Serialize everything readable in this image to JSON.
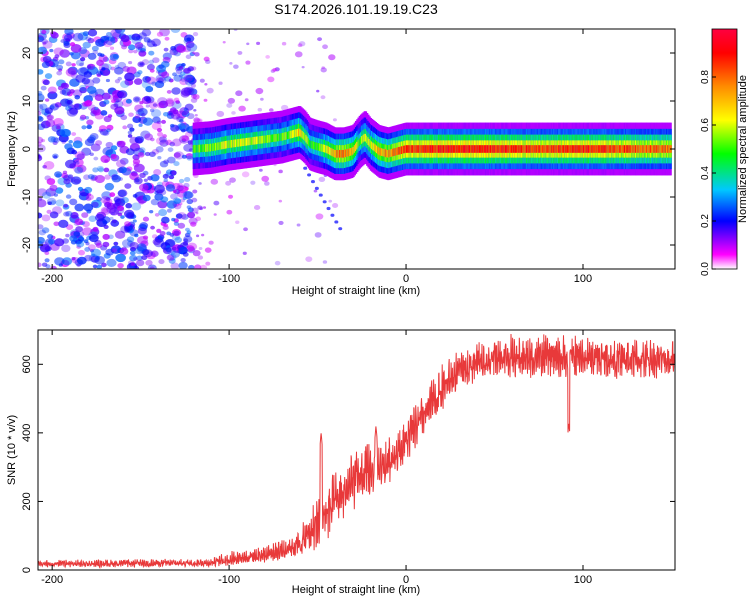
{
  "title": "S174.2026.101.19.19.C23",
  "chart_data": [
    {
      "type": "heatmap",
      "name": "spectrogram",
      "xlabel": "Height of straight line (km)",
      "ylabel": "Frequency (Hz)",
      "xlim": [
        -208,
        152
      ],
      "ylim": [
        -25,
        25
      ],
      "xticks": [
        -200,
        -100,
        0,
        100
      ],
      "xtick_labels": [
        "-200",
        "-100",
        "0",
        "100"
      ],
      "yticks": [
        -20,
        -10,
        0,
        10,
        20
      ],
      "ytick_labels": [
        "-20",
        "-10",
        "0",
        "10",
        "20"
      ],
      "colorbar": {
        "label": "Normalized spectral amplitude",
        "range": [
          0,
          1
        ],
        "ticks": [
          0.0,
          0.2,
          0.4,
          0.6,
          0.8
        ],
        "tick_labels": [
          "0.0",
          "0.2",
          "0.4",
          "0.6",
          "0.8"
        ],
        "colors": [
          "#ffffff",
          "#ff00ff",
          "#0000ff",
          "#00c8ff",
          "#00ff00",
          "#ffff00",
          "#ff8c00",
          "#ff0000"
        ]
      },
      "trace": {
        "x": [
          -120,
          -110,
          -100,
          -90,
          -80,
          -70,
          -65,
          -60,
          -57,
          -54,
          -50,
          -45,
          -40,
          -35,
          -30,
          -26,
          -23,
          -20,
          -15,
          -10,
          -5,
          0,
          20,
          40,
          60,
          80,
          100,
          120,
          150
        ],
        "y": [
          0,
          0.3,
          1,
          1.5,
          2,
          2.5,
          3,
          3.5,
          2.5,
          1,
          0.5,
          0,
          -1,
          -1,
          -0.5,
          1.5,
          2.5,
          1,
          -0.5,
          -1,
          -0.5,
          0,
          0,
          0,
          0,
          0,
          0,
          0,
          0
        ],
        "amplitude": [
          0.5,
          0.55,
          0.6,
          0.6,
          0.55,
          0.5,
          0.55,
          0.7,
          0.6,
          0.5,
          0.55,
          0.6,
          0.75,
          0.8,
          0.7,
          0.55,
          0.65,
          0.6,
          0.7,
          0.75,
          0.8,
          0.85,
          0.9,
          0.9,
          0.88,
          0.85,
          0.9,
          0.85,
          0.8
        ]
      },
      "noise_region": [
        -208,
        -120
      ]
    },
    {
      "type": "line",
      "name": "snr",
      "xlabel": "Height of straight line (km)",
      "ylabel": "SNR (10 * v/v)",
      "xlim": [
        -208,
        152
      ],
      "ylim": [
        0,
        700
      ],
      "xticks": [
        -200,
        -100,
        0,
        100
      ],
      "xtick_labels": [
        "-200",
        "-100",
        "0",
        "100"
      ],
      "yticks": [
        0,
        200,
        400,
        600
      ],
      "ytick_labels": [
        "0",
        "200",
        "400",
        "600"
      ],
      "color": "#e8393a",
      "envelope": {
        "x": [
          -208,
          -150,
          -110,
          -100,
          -80,
          -60,
          -50,
          -40,
          -30,
          -20,
          -10,
          0,
          10,
          20,
          30,
          40,
          60,
          80,
          90,
          95,
          100,
          120,
          152
        ],
        "low": [
          8,
          8,
          10,
          12,
          20,
          35,
          60,
          110,
          170,
          210,
          250,
          310,
          390,
          460,
          520,
          550,
          560,
          560,
          560,
          560,
          560,
          555,
          560
        ],
        "high": [
          30,
          32,
          35,
          55,
          75,
          120,
          230,
          300,
          360,
          380,
          400,
          450,
          520,
          600,
          650,
          680,
          690,
          690,
          690,
          690,
          690,
          680,
          680
        ]
      },
      "spikes": [
        {
          "x": -48,
          "y": 400
        },
        {
          "x": -17,
          "y": 420
        },
        {
          "x": 92,
          "y": 430
        }
      ]
    }
  ]
}
